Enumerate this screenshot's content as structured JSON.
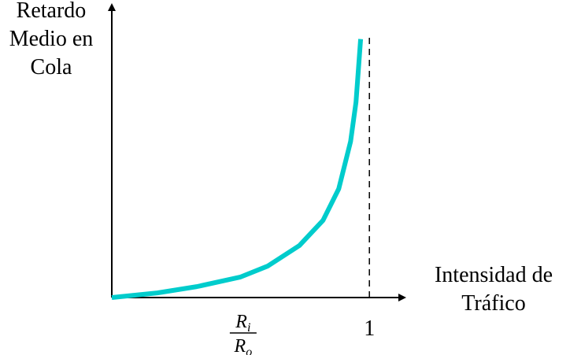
{
  "chart_data": {
    "type": "line",
    "ylabel": [
      "Retardo",
      "Medio en",
      "Cola"
    ],
    "xlabel": [
      "Intensidad de",
      "Tráfico"
    ],
    "x": [
      0,
      0.177,
      0.33,
      0.498,
      0.606,
      0.728,
      0.82,
      0.881,
      0.927,
      0.948,
      0.966
    ],
    "series": [
      {
        "color": "#00cccc",
        "values": [
          0,
          0.19,
          0.45,
          0.84,
          1.3,
          2.14,
          3.18,
          4.48,
          6.43,
          8.05,
          10.65
        ]
      }
    ],
    "xlim": [
      0,
      1.14
    ],
    "ylim": [
      0,
      12
    ],
    "xticks": [
      {
        "value": 0.51,
        "label": {
          "numerator": [
            "R",
            "i"
          ],
          "denominator": [
            "R",
            "o"
          ]
        }
      },
      1
    ],
    "reference_line": {
      "x": 1,
      "style": "dashed"
    }
  }
}
